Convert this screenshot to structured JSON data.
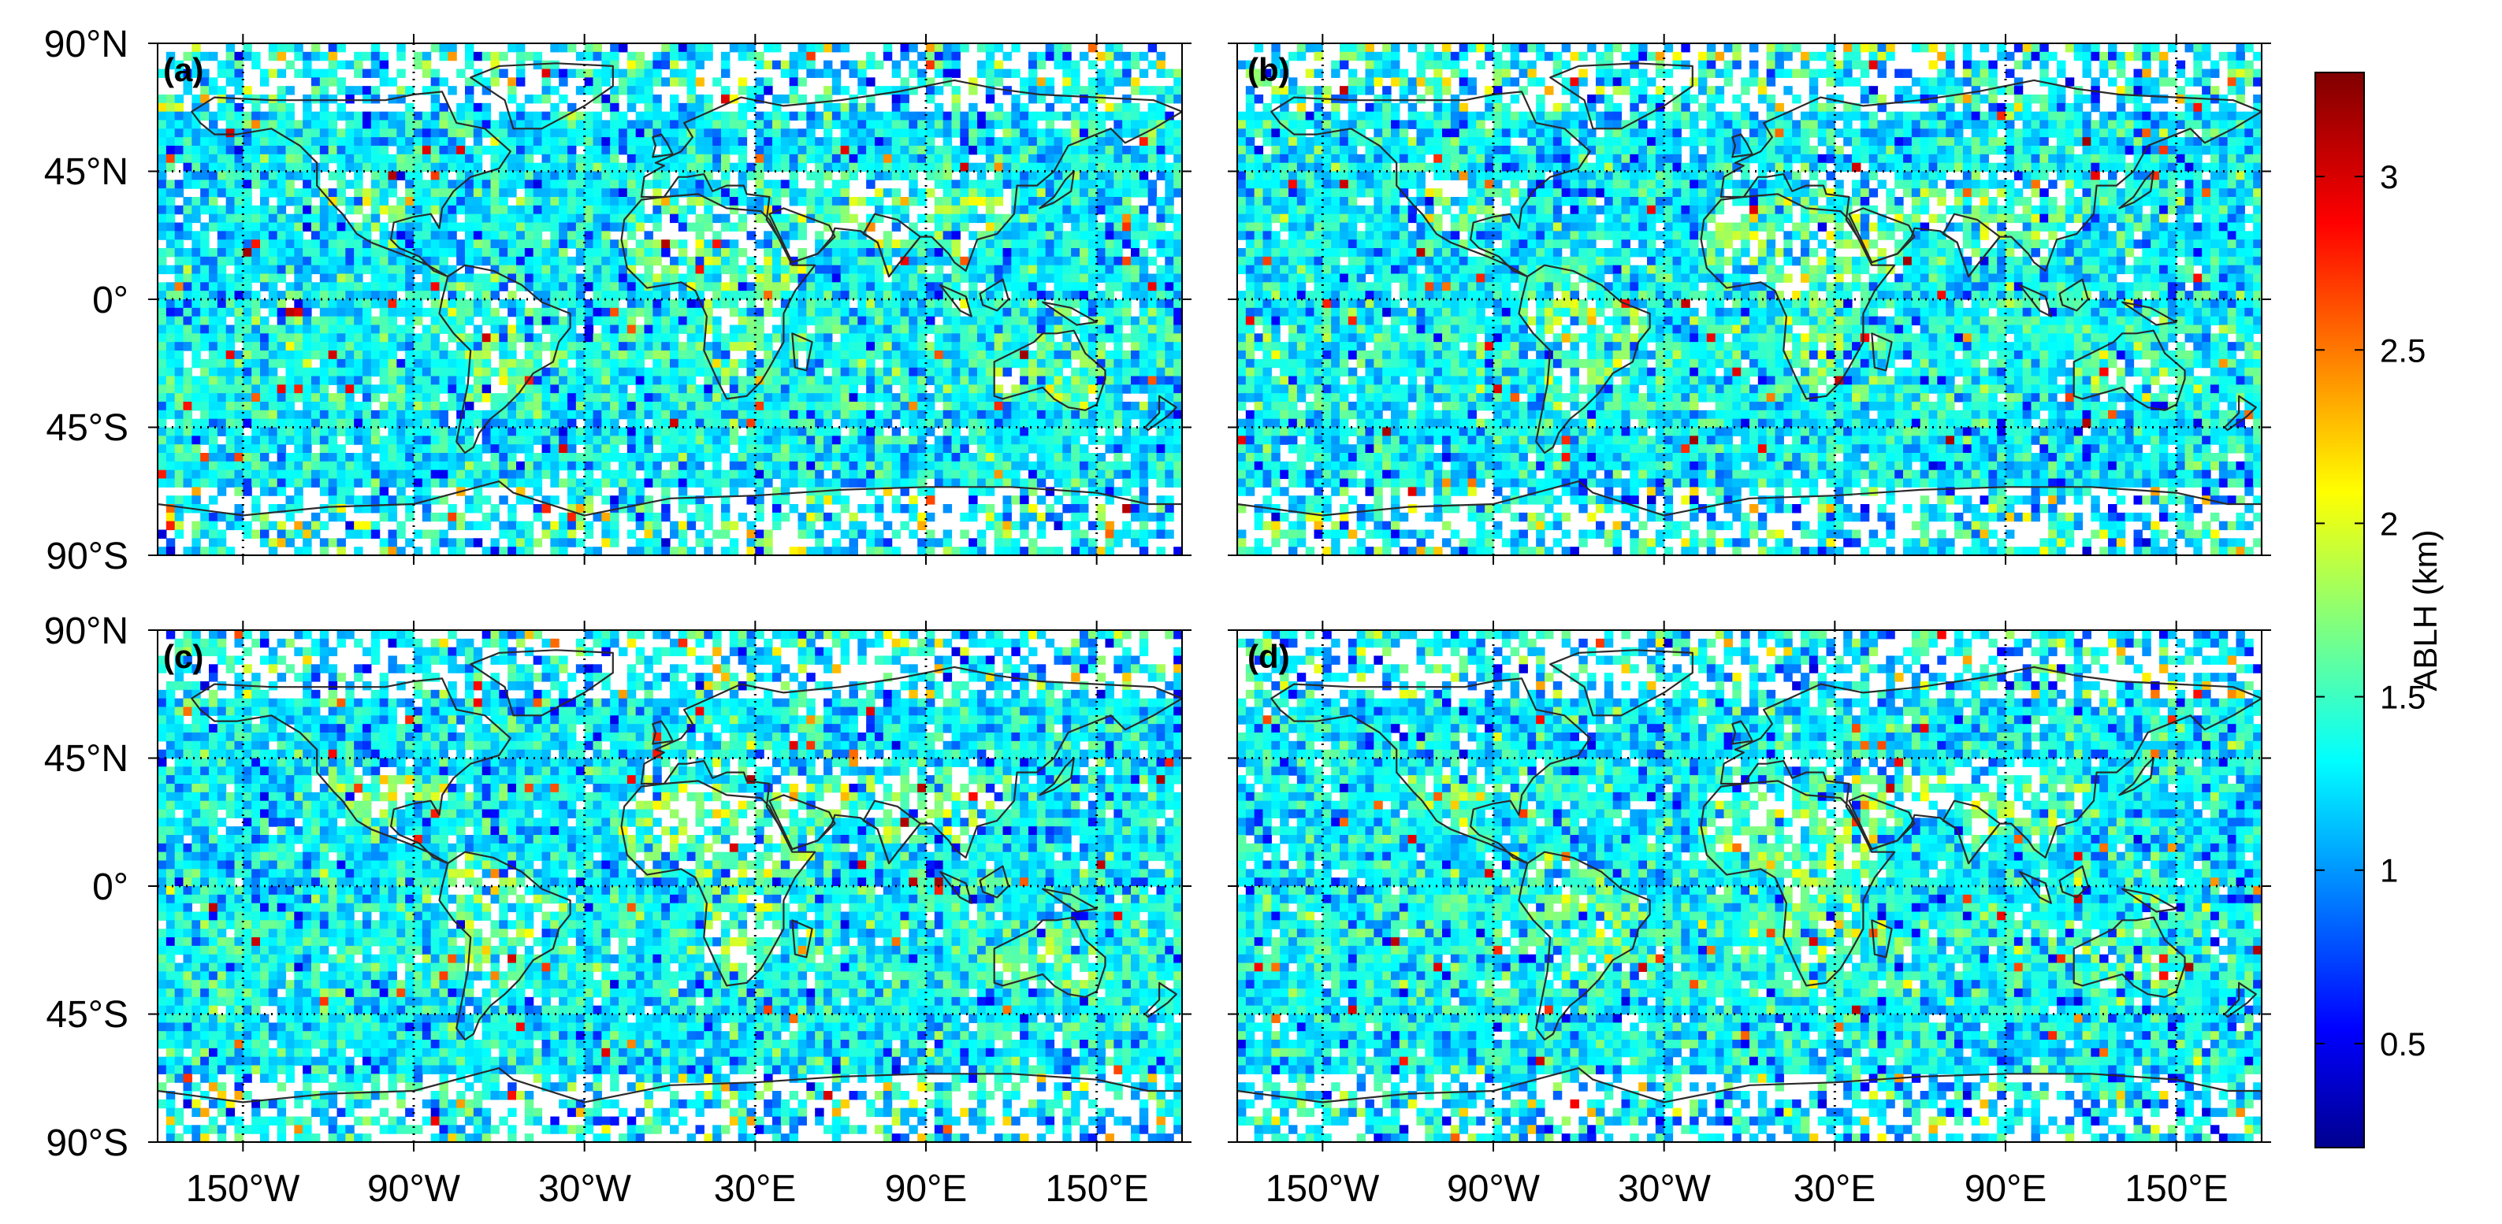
{
  "figure": {
    "panels": [
      {
        "id": "a",
        "label": "(a)",
        "seed": 11
      },
      {
        "id": "b",
        "label": "(b)",
        "seed": 23
      },
      {
        "id": "c",
        "label": "(c)",
        "seed": 37
      },
      {
        "id": "d",
        "label": "(d)",
        "seed": 53
      }
    ],
    "lat_tick_labels": [
      "90°N",
      "45°N",
      "0°",
      "45°S",
      "90°S"
    ],
    "lon_tick_labels": [
      "150°W",
      "90°W",
      "30°W",
      "30°E",
      "90°E",
      "150°E"
    ],
    "colorbar": {
      "label": "ABLH (km)",
      "min": 0.2,
      "max": 3.3,
      "ticks": [
        {
          "value": 0.5,
          "label": "0.5"
        },
        {
          "value": 1.0,
          "label": "1"
        },
        {
          "value": 1.5,
          "label": "1.5"
        },
        {
          "value": 2.0,
          "label": "2"
        },
        {
          "value": 2.5,
          "label": "2.5"
        },
        {
          "value": 3.0,
          "label": "3"
        }
      ]
    },
    "colormap": "jet",
    "cell_size_deg": 3.0,
    "grid_lon_degrees": [
      -150,
      -90,
      -30,
      30,
      90,
      150
    ],
    "grid_lat_degrees": [
      -45,
      0,
      45
    ]
  }
}
